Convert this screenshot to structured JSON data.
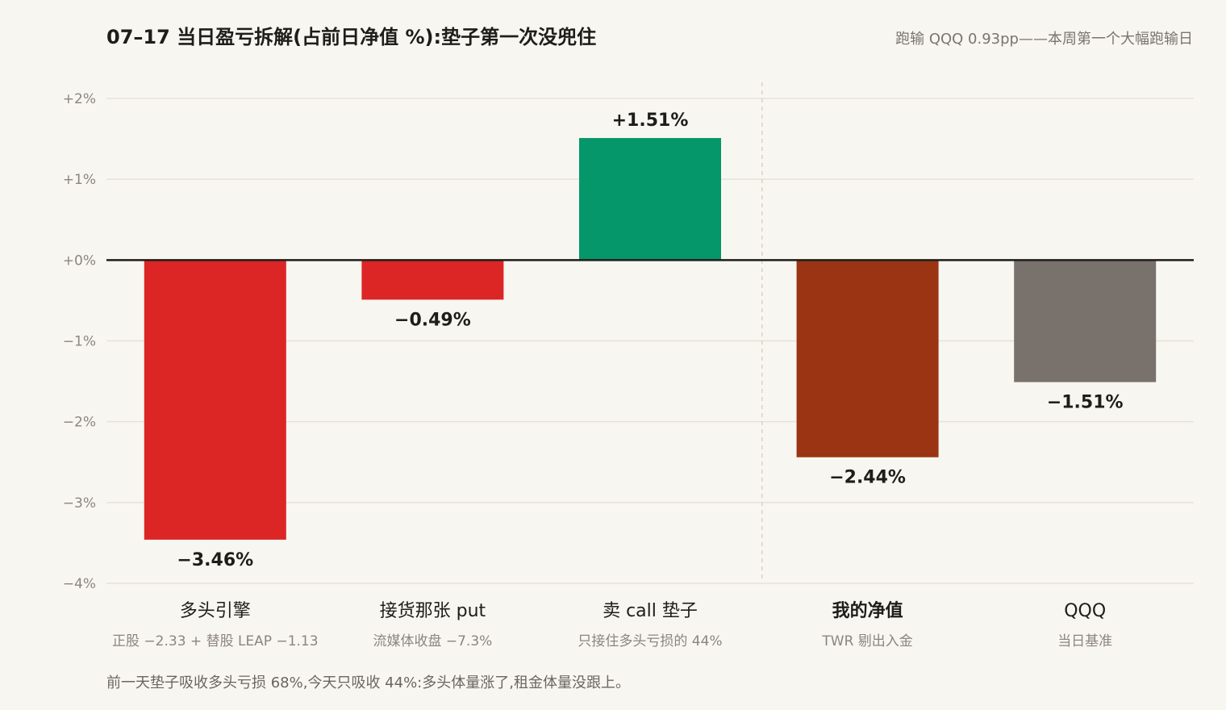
{
  "header": {
    "title": "07–17 当日盈亏拆解(占前日净值 %):垫子第一次没兜住",
    "subtitle": "跑输 QQQ 0.93pp——本周第一个大幅跑输日"
  },
  "footnote": "前一天垫子吸收多头亏损 68%,今天只吸收 44%:多头体量涨了,租金体量没跟上。",
  "chart_data": {
    "type": "bar",
    "ylim": [
      -4,
      2
    ],
    "yticks": [
      {
        "value": 2,
        "label": "+2%"
      },
      {
        "value": 1,
        "label": "+1%"
      },
      {
        "value": 0,
        "label": "+0%"
      },
      {
        "value": -1,
        "label": "−1%"
      },
      {
        "value": -2,
        "label": "−2%"
      },
      {
        "value": -3,
        "label": "−3%"
      },
      {
        "value": -4,
        "label": "−4%"
      }
    ],
    "grid": true,
    "categories": [
      {
        "label": "多头引擎",
        "sublabel": "正股 −2.33 + 替股 LEAP −1.13",
        "value": -3.46,
        "value_label": "−3.46%",
        "color": "#dc2626",
        "bold": false
      },
      {
        "label": "接货那张 put",
        "sublabel": "流媒体收盘 −7.3%",
        "value": -0.49,
        "value_label": "−0.49%",
        "color": "#dc2626",
        "bold": false
      },
      {
        "label": "卖 call 垫子",
        "sublabel": "只接住多头亏损的 44%",
        "value": 1.51,
        "value_label": "+1.51%",
        "color": "#059669",
        "bold": false
      },
      {
        "label": "我的净值",
        "sublabel": "TWR 剔出入金",
        "value": -2.44,
        "value_label": "−2.44%",
        "color": "#9a3412",
        "bold": true
      },
      {
        "label": "QQQ",
        "sublabel": "当日基准",
        "value": -1.51,
        "value_label": "−1.51%",
        "color": "#78716c",
        "bold": false
      }
    ],
    "separator_after_index": 2
  }
}
